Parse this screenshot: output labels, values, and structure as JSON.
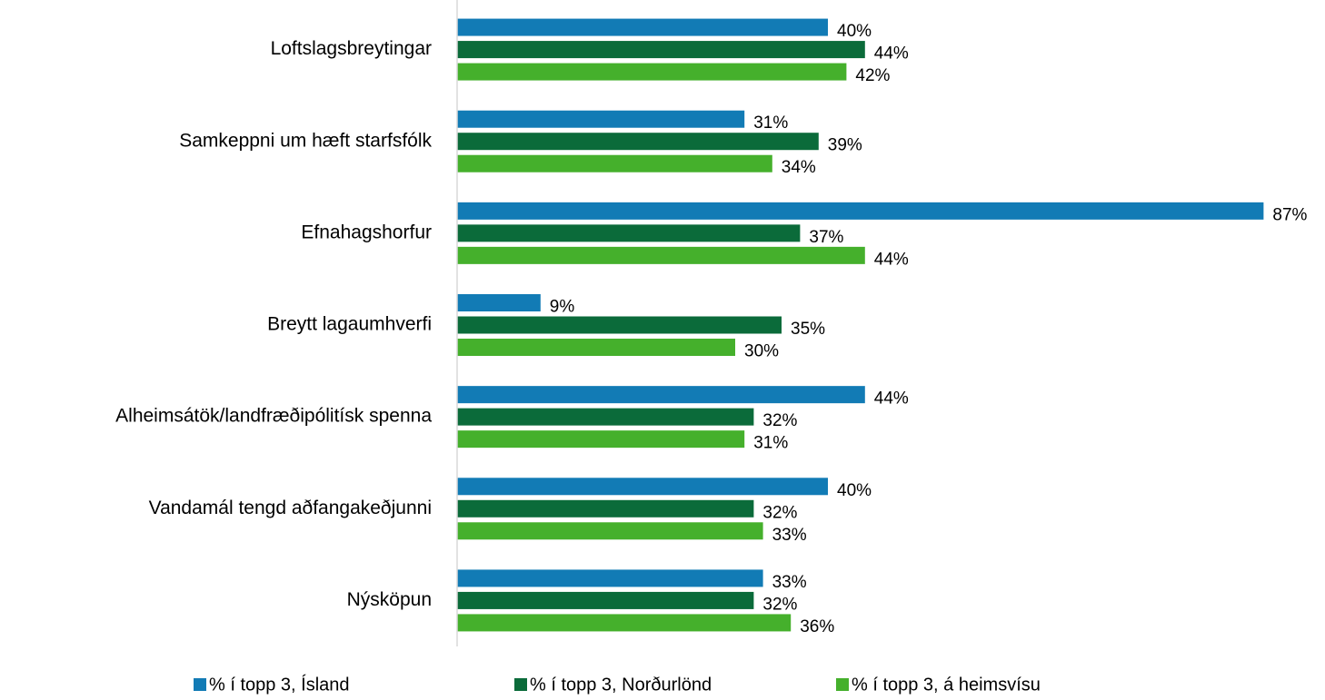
{
  "chart_data": {
    "type": "barh",
    "categories": [
      "Loftslagsbreytingar",
      "Samkeppni um hæft starfsfólk",
      "Efnahagshorfur",
      "Breytt lagaumhverfi",
      "Alheimsátök/landfræðipólitísk spenna",
      "Vandamál tengd aðfangakeðjunni",
      "Nýsköpun"
    ],
    "series": [
      {
        "name": "% í topp 3, Ísland",
        "color": "#127bb5",
        "values": [
          40,
          31,
          87,
          9,
          44,
          40,
          33
        ],
        "value_labels": [
          "40%",
          "31%",
          "87%",
          "9%",
          "44%",
          "40%",
          "33%"
        ]
      },
      {
        "name": "% í topp 3, Norðurlönd",
        "color": "#0b6b3a",
        "values": [
          44,
          39,
          37,
          35,
          32,
          32,
          32
        ],
        "value_labels": [
          "44%",
          "39%",
          "37%",
          "35%",
          "32%",
          "32%",
          "32%"
        ]
      },
      {
        "name": "% í topp 3, á heimsvísu",
        "color": "#45b02c",
        "values": [
          42,
          34,
          44,
          30,
          31,
          33,
          36
        ],
        "value_labels": [
          "42%",
          "34%",
          "44%",
          "30%",
          "31%",
          "33%",
          "36%"
        ]
      }
    ],
    "xlim": [
      0,
      90
    ],
    "legend": "bottom"
  }
}
